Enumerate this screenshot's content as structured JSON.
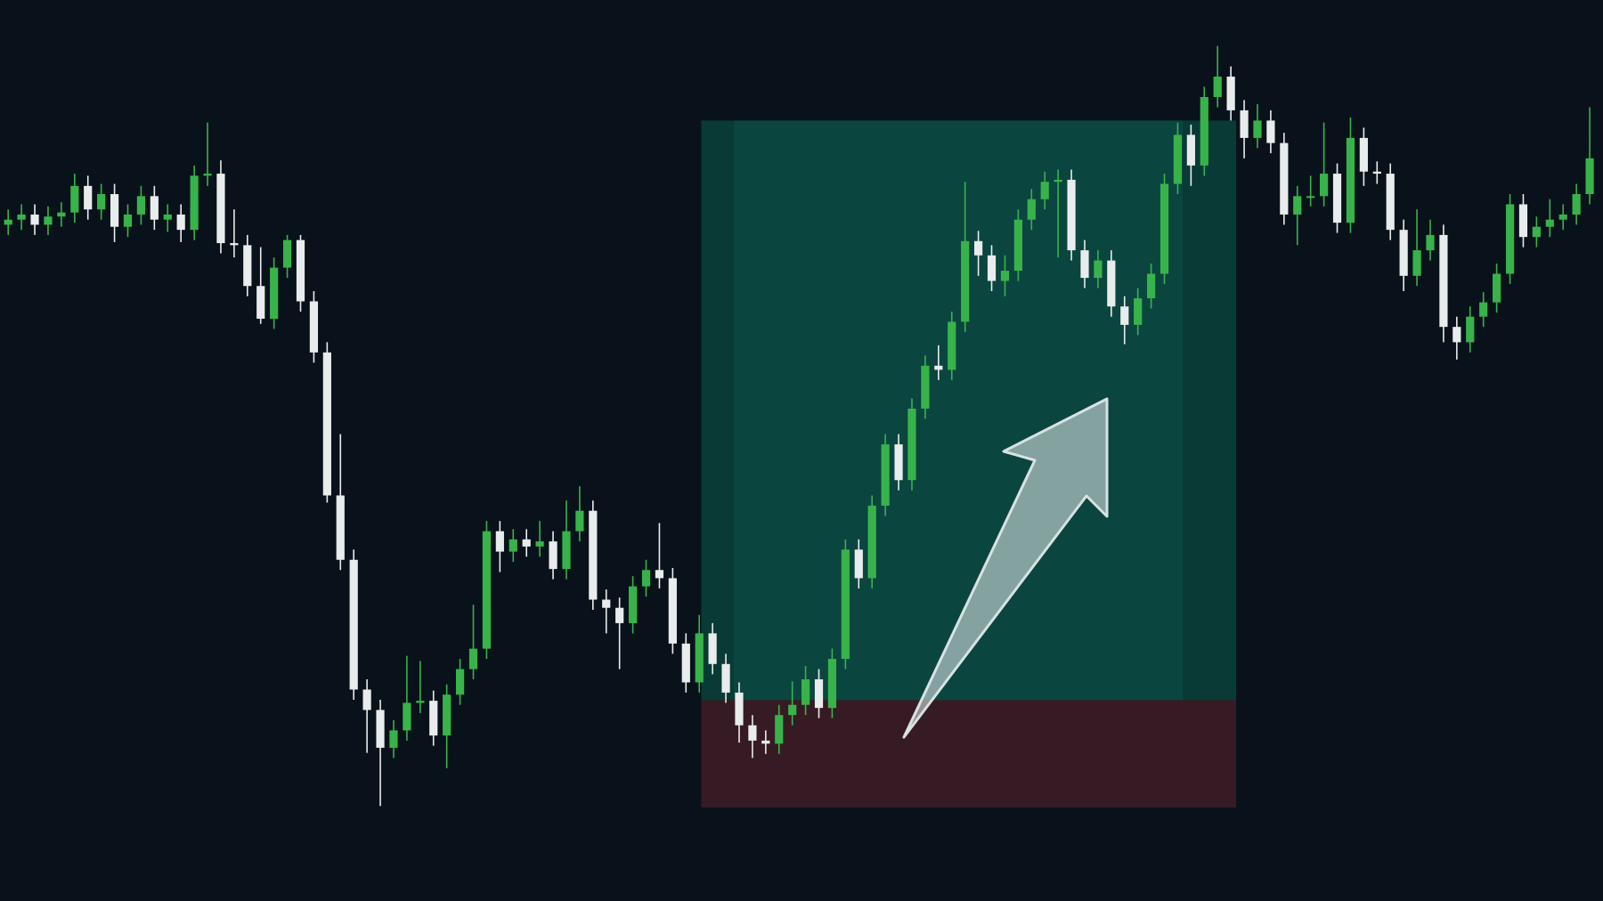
{
  "chart_data": {
    "type": "candlestick",
    "ylim": [
      0,
      882
    ],
    "up_color": "#38b34a",
    "down_color": "#e9ecec",
    "open": [
      662,
      667,
      672,
      662,
      670,
      674,
      700,
      677,
      692,
      660,
      672,
      690,
      667,
      672,
      657,
      710,
      712,
      644,
      642,
      602,
      570,
      620,
      647,
      587,
      537,
      397,
      334,
      207,
      187,
      150,
      167,
      194,
      196,
      162,
      202,
      227,
      247,
      362,
      342,
      354,
      347,
      352,
      325,
      362,
      382,
      295,
      287,
      272,
      308,
      324,
      316,
      252,
      214,
      262,
      232,
      204,
      172,
      157,
      154,
      182,
      192,
      217,
      189,
      237,
      344,
      316,
      387,
      447,
      412,
      482,
      524,
      520,
      567,
      646,
      632,
      607,
      617,
      667,
      687,
      704,
      706,
      637,
      610,
      627,
      582,
      564,
      590,
      614,
      702,
      750,
      720,
      787,
      807,
      774,
      747,
      764,
      742,
      672,
      690,
      690,
      712,
      664,
      747,
      714,
      712,
      657,
      612,
      637,
      652,
      562,
      547,
      572,
      586,
      614,
      682,
      650,
      660,
      667,
      672,
      692
    ],
    "high": [
      677,
      682,
      682,
      680,
      684,
      712,
      710,
      702,
      702,
      682,
      700,
      700,
      682,
      682,
      720,
      762,
      725,
      677,
      652,
      640,
      630,
      652,
      652,
      597,
      547,
      457,
      344,
      217,
      197,
      177,
      240,
      235,
      206,
      212,
      237,
      290,
      372,
      372,
      364,
      364,
      372,
      362,
      392,
      406,
      392,
      305,
      297,
      318,
      334,
      370,
      326,
      262,
      280,
      272,
      242,
      214,
      182,
      167,
      192,
      215,
      230,
      227,
      247,
      354,
      354,
      397,
      457,
      457,
      492,
      534,
      544,
      577,
      704,
      656,
      642,
      632,
      677,
      697,
      714,
      716,
      716,
      647,
      637,
      637,
      592,
      600,
      624,
      712,
      762,
      760,
      797,
      837,
      817,
      784,
      780,
      774,
      752,
      700,
      710,
      762,
      722,
      767,
      757,
      724,
      722,
      667,
      677,
      667,
      662,
      572,
      582,
      596,
      624,
      692,
      692,
      670,
      687,
      682,
      702,
      777
    ],
    "low": [
      652,
      657,
      652,
      652,
      660,
      664,
      667,
      667,
      645,
      650,
      662,
      657,
      655,
      645,
      647,
      700,
      634,
      630,
      592,
      565,
      560,
      610,
      577,
      527,
      390,
      324,
      197,
      145,
      93,
      140,
      157,
      184,
      152,
      130,
      192,
      217,
      237,
      322,
      332,
      337,
      337,
      315,
      315,
      352,
      285,
      262,
      227,
      262,
      298,
      306,
      242,
      204,
      204,
      222,
      194,
      155,
      140,
      144,
      144,
      172,
      182,
      179,
      179,
      227,
      306,
      306,
      377,
      402,
      402,
      472,
      510,
      510,
      557,
      612,
      597,
      592,
      607,
      657,
      677,
      630,
      627,
      600,
      600,
      572,
      545,
      554,
      580,
      604,
      692,
      700,
      710,
      777,
      764,
      727,
      737,
      732,
      662,
      642,
      680,
      680,
      654,
      654,
      700,
      702,
      647,
      597,
      602,
      627,
      547,
      530,
      537,
      562,
      576,
      604,
      640,
      640,
      650,
      657,
      662,
      682
    ],
    "close": [
      667,
      672,
      662,
      670,
      674,
      700,
      677,
      692,
      660,
      672,
      690,
      667,
      672,
      657,
      710,
      712,
      644,
      642,
      602,
      570,
      620,
      647,
      587,
      537,
      397,
      334,
      207,
      187,
      150,
      167,
      194,
      196,
      162,
      202,
      227,
      247,
      362,
      342,
      354,
      347,
      352,
      325,
      362,
      382,
      295,
      287,
      272,
      308,
      324,
      316,
      252,
      214,
      262,
      232,
      204,
      172,
      157,
      154,
      182,
      192,
      217,
      189,
      237,
      344,
      316,
      387,
      447,
      412,
      482,
      524,
      520,
      567,
      646,
      632,
      607,
      617,
      667,
      687,
      704,
      706,
      637,
      610,
      627,
      582,
      564,
      590,
      614,
      702,
      750,
      720,
      787,
      807,
      774,
      747,
      764,
      742,
      672,
      690,
      690,
      712,
      664,
      747,
      714,
      712,
      657,
      612,
      637,
      652,
      562,
      547,
      572,
      586,
      614,
      682,
      650,
      660,
      667,
      672,
      692,
      727
    ]
  }
}
